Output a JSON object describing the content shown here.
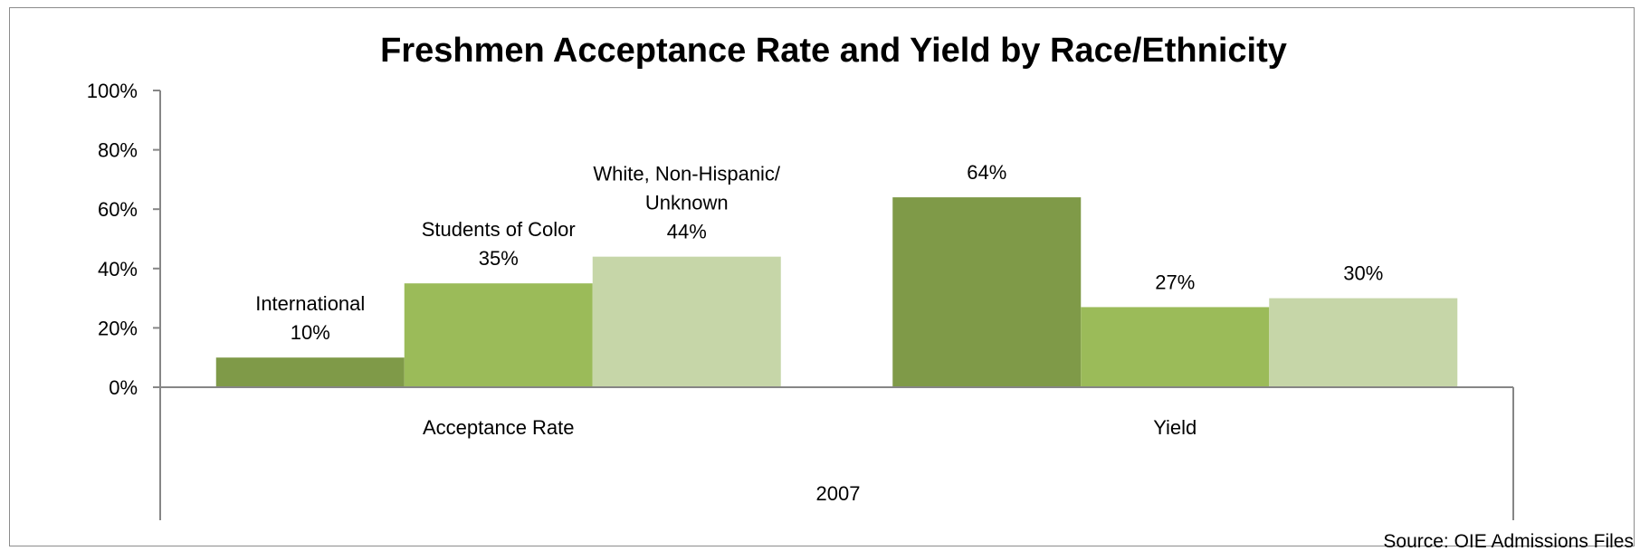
{
  "chart_data": {
    "type": "bar",
    "title": "Freshmen Acceptance Rate and Yield by Race/Ethnicity",
    "group_label": "2007",
    "categories": [
      "Acceptance Rate",
      "Yield"
    ],
    "series": [
      {
        "name": "International",
        "values": [
          10,
          64
        ],
        "color": "#7f9a48",
        "label_lines": [
          [
            "International",
            "10%"
          ],
          [
            "64%"
          ]
        ]
      },
      {
        "name": "Students of Color",
        "values": [
          35,
          27
        ],
        "color": "#9bbb59",
        "label_lines": [
          [
            "Students of Color",
            "35%"
          ],
          [
            "27%"
          ]
        ]
      },
      {
        "name": "White, Non-Hispanic/ Unknown",
        "values": [
          44,
          30
        ],
        "color": "#c6d6a8",
        "label_lines": [
          [
            "White, Non-Hispanic/",
            "Unknown",
            "44%"
          ],
          [
            "30%"
          ]
        ]
      }
    ],
    "y_ticks": [
      "0%",
      "20%",
      "40%",
      "60%",
      "80%",
      "100%"
    ],
    "ylim": [
      0,
      100
    ],
    "grid": false,
    "legend": "none",
    "source": "Source: OIE Admissions  Files"
  }
}
